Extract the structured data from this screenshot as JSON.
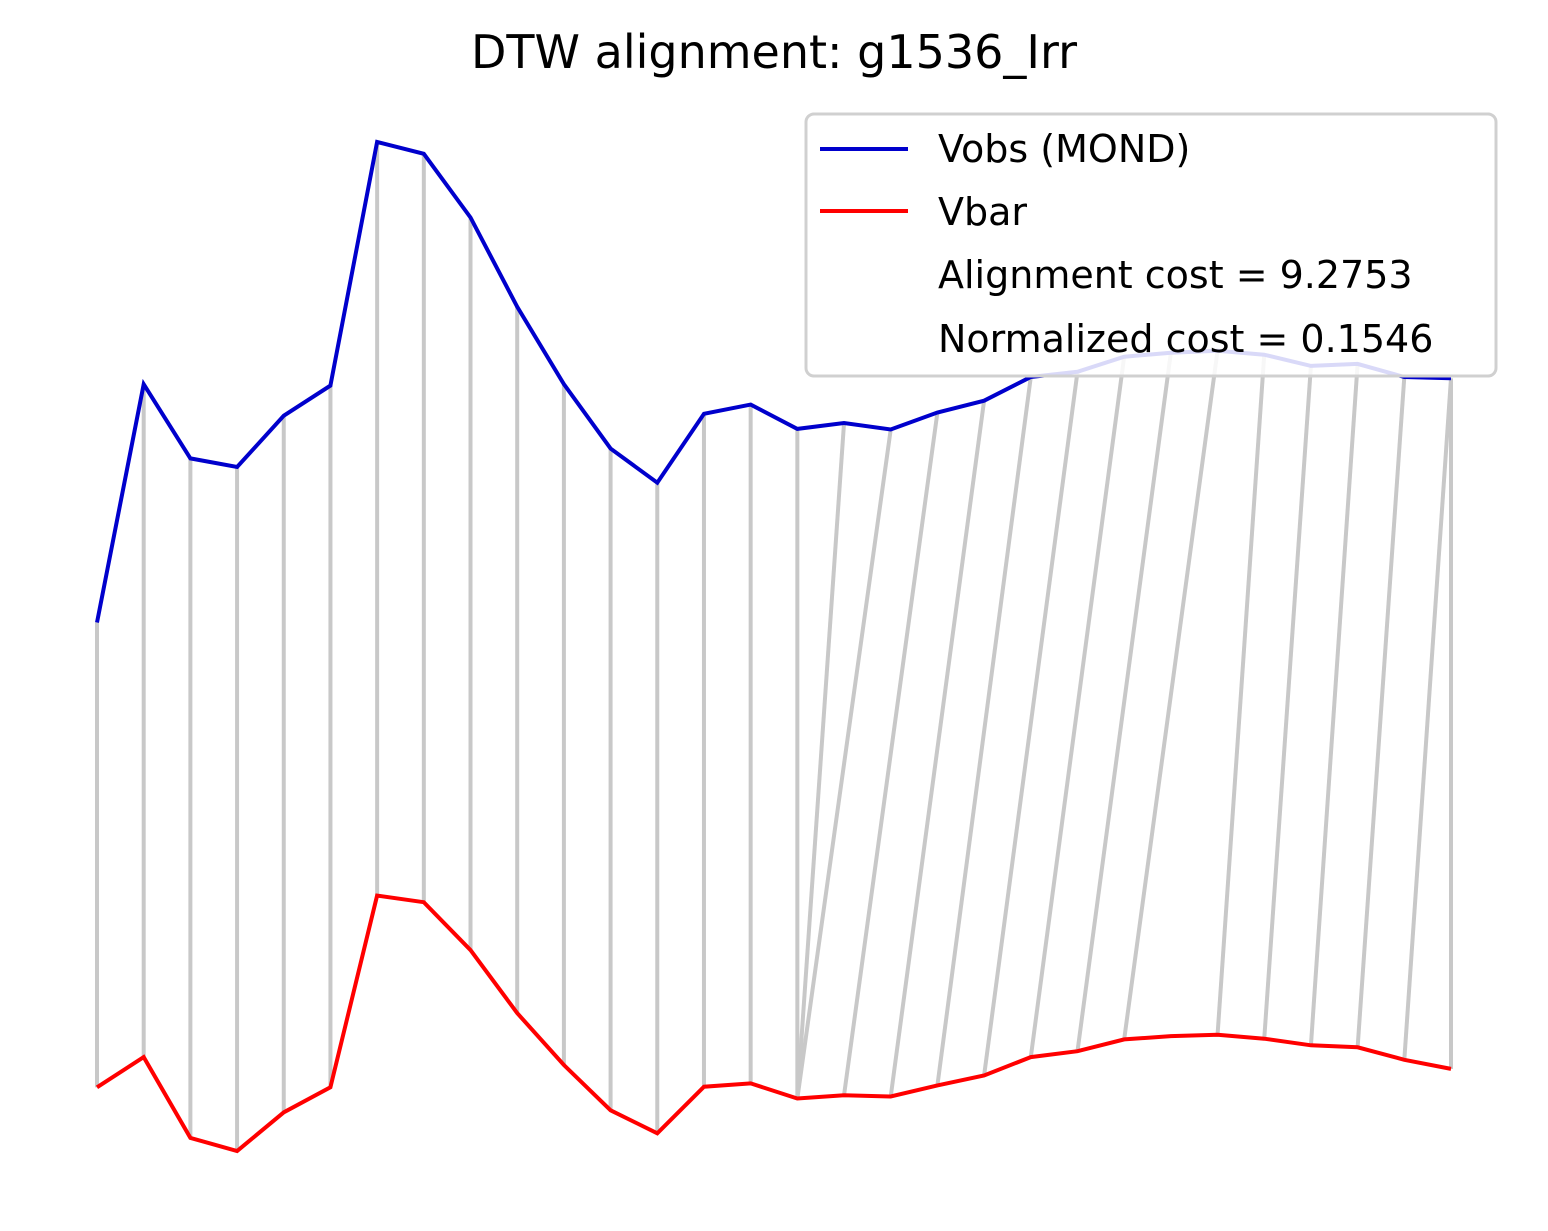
{
  "chart_data": {
    "type": "line",
    "title": "DTW alignment: g1536_Irr",
    "xlabel": "",
    "ylabel": "",
    "axes_visible": false,
    "grid": false,
    "legend_position": "top-right",
    "x": [
      0,
      1,
      2,
      3,
      4,
      5,
      6,
      7,
      8,
      9,
      10,
      11,
      12,
      13,
      14,
      15,
      16,
      17,
      18,
      19,
      20,
      21,
      22,
      23,
      24,
      25,
      26,
      27,
      28,
      29
    ],
    "series": [
      {
        "name": "Vobs (MOND)",
        "color": "#0000cc",
        "values": [
          13.86,
          17.49,
          16.36,
          16.23,
          17.01,
          17.47,
          21.18,
          21.0,
          20.03,
          18.67,
          17.49,
          16.51,
          15.99,
          17.04,
          17.18,
          16.81,
          16.9,
          16.8,
          17.06,
          17.24,
          17.6,
          17.68,
          17.91,
          17.97,
          18.0,
          17.94,
          17.77,
          17.8,
          17.6,
          17.58
        ]
      },
      {
        "name": "Vbar",
        "color": "#ff0000",
        "values": [
          6.78,
          7.24,
          6.01,
          5.81,
          6.4,
          6.78,
          9.7,
          9.6,
          8.87,
          7.91,
          7.12,
          6.43,
          6.08,
          6.79,
          6.84,
          6.61,
          6.66,
          6.64,
          6.81,
          6.96,
          7.24,
          7.33,
          7.51,
          7.56,
          7.58,
          7.52,
          7.42,
          7.39,
          7.2,
          7.06
        ]
      }
    ],
    "alignment_path": [
      [
        0,
        0
      ],
      [
        1,
        1
      ],
      [
        2,
        2
      ],
      [
        3,
        3
      ],
      [
        4,
        4
      ],
      [
        5,
        5
      ],
      [
        6,
        6
      ],
      [
        7,
        7
      ],
      [
        8,
        8
      ],
      [
        9,
        9
      ],
      [
        10,
        10
      ],
      [
        11,
        11
      ],
      [
        12,
        12
      ],
      [
        13,
        13
      ],
      [
        14,
        14
      ],
      [
        15,
        15
      ],
      [
        16,
        15
      ],
      [
        17,
        15
      ],
      [
        18,
        16
      ],
      [
        19,
        17
      ],
      [
        20,
        18
      ],
      [
        21,
        19
      ],
      [
        22,
        20
      ],
      [
        23,
        21
      ],
      [
        24,
        22
      ],
      [
        25,
        24
      ],
      [
        26,
        25
      ],
      [
        27,
        26
      ],
      [
        28,
        27
      ],
      [
        29,
        28
      ],
      [
        29,
        29
      ]
    ],
    "alignment_line_color": "#c8c8c8",
    "annotations": [
      "Alignment cost = 9.2753",
      "Normalized cost = 0.1546"
    ]
  }
}
